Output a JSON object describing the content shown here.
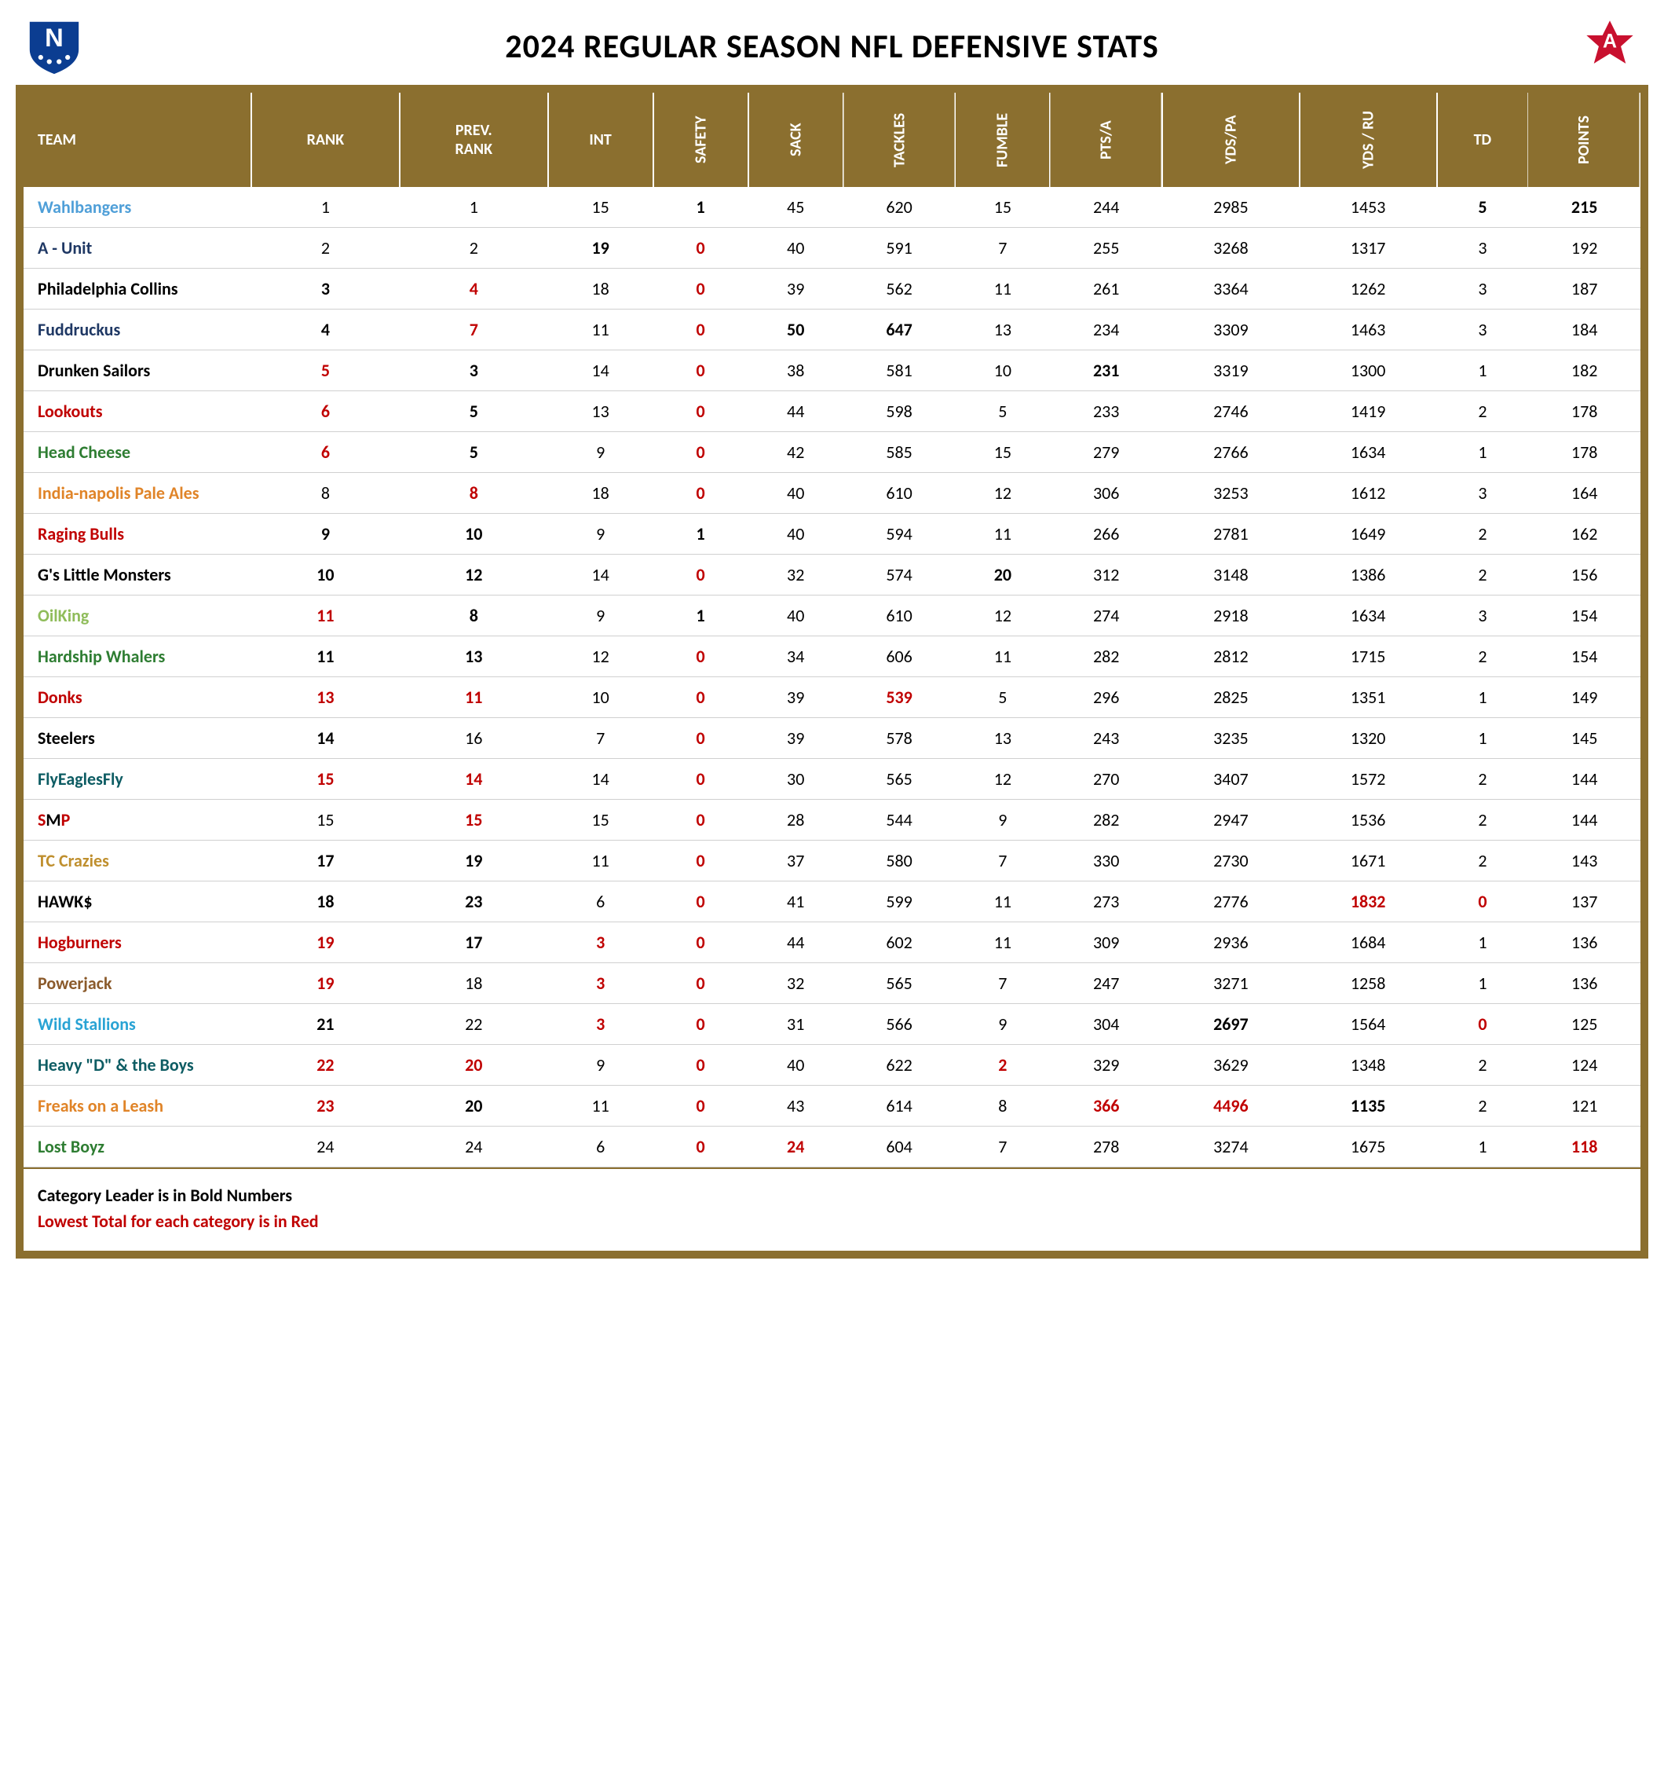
{
  "title": "2024 REGULAR SEASON NFL DEFENSIVE STATS",
  "colors": {
    "header_bg": "#8b6f2f",
    "header_fg": "#ffffff",
    "red": "#c00000",
    "nfc_logo": "#0b3d91",
    "afc_logo": "#c8102e"
  },
  "columns": [
    {
      "key": "team",
      "label": "TEAM",
      "vert": false
    },
    {
      "key": "rank",
      "label": "RANK",
      "vert": false
    },
    {
      "key": "prev",
      "label": "PREV. RANK",
      "vert": false
    },
    {
      "key": "int",
      "label": "INT",
      "vert": false
    },
    {
      "key": "safety",
      "label": "SAFETY",
      "vert": true
    },
    {
      "key": "sack",
      "label": "SACK",
      "vert": true
    },
    {
      "key": "tackles",
      "label": "TACKLES",
      "vert": true
    },
    {
      "key": "fumble",
      "label": "FUMBLE",
      "vert": true
    },
    {
      "key": "ptsa",
      "label": "PTS/A",
      "vert": true
    },
    {
      "key": "ydspa",
      "label": "YDS/PA",
      "vert": true
    },
    {
      "key": "ydsru",
      "label": "YDS / RU",
      "vert": true
    },
    {
      "key": "td",
      "label": "TD",
      "vert": false
    },
    {
      "key": "points",
      "label": "POINTS",
      "vert": true
    }
  ],
  "team_colors": {
    "Wahlbangers": "#4f9fd8",
    "A - Unit": "#1f3864",
    "Philadelphia Collins": "#000000",
    "Fuddruckus": "#1f3864",
    "Drunken Sailors": "#000000",
    "Lookouts": "#c00000",
    "Head Cheese": "#2e7d32",
    "India-napolis Pale Ales": "#e08428",
    "Raging Bulls": "#c00000",
    "G's Little Monsters": "#000000",
    "OilKing": "#8fbc5a",
    "Hardship Whalers": "#2e7d32",
    "Donks": "#c00000",
    "Steelers": "#000000",
    "FlyEaglesFly": "#0d5c63",
    "SMP": "#000000",
    "TC Crazies": "#bf8f2e",
    "HAWK$": "#000000",
    "Hogburners": "#c00000",
    "Powerjack": "#8b5a2b",
    "Wild Stallions": "#29a3d4",
    "Heavy \"D\" & the Boys": "#0d5c63",
    "Freaks on a Leash": "#e08428",
    "Lost Boyz": "#2e7d32"
  },
  "smp_span": {
    "prefix": "S",
    "prefix_color": "#c00000",
    "mid": "M",
    "mid_color": "#000000",
    "suffix": "P",
    "suffix_color": "#c00000"
  },
  "rows": [
    {
      "team": "Wahlbangers",
      "rank": {
        "v": 1
      },
      "prev": {
        "v": 1
      },
      "int": {
        "v": 15
      },
      "safety": {
        "v": 1,
        "b": true
      },
      "sack": {
        "v": 45
      },
      "tackles": {
        "v": 620
      },
      "fumble": {
        "v": 15
      },
      "ptsa": {
        "v": 244
      },
      "ydspa": {
        "v": 2985
      },
      "ydsru": {
        "v": 1453
      },
      "td": {
        "v": 5,
        "b": true
      },
      "points": {
        "v": 215,
        "b": true
      }
    },
    {
      "team": "A - Unit",
      "rank": {
        "v": 2
      },
      "prev": {
        "v": 2
      },
      "int": {
        "v": 19,
        "b": true
      },
      "safety": {
        "v": 0,
        "r": true
      },
      "sack": {
        "v": 40
      },
      "tackles": {
        "v": 591
      },
      "fumble": {
        "v": 7
      },
      "ptsa": {
        "v": 255
      },
      "ydspa": {
        "v": 3268
      },
      "ydsru": {
        "v": 1317
      },
      "td": {
        "v": 3
      },
      "points": {
        "v": 192
      }
    },
    {
      "team": "Philadelphia Collins",
      "rank": {
        "v": 3,
        "b": true
      },
      "prev": {
        "v": 4,
        "r": true
      },
      "int": {
        "v": 18
      },
      "safety": {
        "v": 0,
        "r": true
      },
      "sack": {
        "v": 39
      },
      "tackles": {
        "v": 562
      },
      "fumble": {
        "v": 11
      },
      "ptsa": {
        "v": 261
      },
      "ydspa": {
        "v": 3364
      },
      "ydsru": {
        "v": 1262
      },
      "td": {
        "v": 3
      },
      "points": {
        "v": 187
      }
    },
    {
      "team": "Fuddruckus",
      "rank": {
        "v": 4,
        "b": true
      },
      "prev": {
        "v": 7,
        "r": true
      },
      "int": {
        "v": 11
      },
      "safety": {
        "v": 0,
        "r": true
      },
      "sack": {
        "v": 50,
        "b": true
      },
      "tackles": {
        "v": 647,
        "b": true
      },
      "fumble": {
        "v": 13
      },
      "ptsa": {
        "v": 234
      },
      "ydspa": {
        "v": 3309
      },
      "ydsru": {
        "v": 1463
      },
      "td": {
        "v": 3
      },
      "points": {
        "v": 184
      }
    },
    {
      "team": "Drunken Sailors",
      "rank": {
        "v": 5,
        "r": true
      },
      "prev": {
        "v": 3,
        "b": true
      },
      "int": {
        "v": 14
      },
      "safety": {
        "v": 0,
        "r": true
      },
      "sack": {
        "v": 38
      },
      "tackles": {
        "v": 581
      },
      "fumble": {
        "v": 10
      },
      "ptsa": {
        "v": 231,
        "b": true
      },
      "ydspa": {
        "v": 3319
      },
      "ydsru": {
        "v": 1300
      },
      "td": {
        "v": 1
      },
      "points": {
        "v": 182
      }
    },
    {
      "team": "Lookouts",
      "rank": {
        "v": 6,
        "r": true
      },
      "prev": {
        "v": 5,
        "b": true
      },
      "int": {
        "v": 13
      },
      "safety": {
        "v": 0,
        "r": true
      },
      "sack": {
        "v": 44
      },
      "tackles": {
        "v": 598
      },
      "fumble": {
        "v": 5
      },
      "ptsa": {
        "v": 233
      },
      "ydspa": {
        "v": 2746
      },
      "ydsru": {
        "v": 1419
      },
      "td": {
        "v": 2
      },
      "points": {
        "v": 178
      }
    },
    {
      "team": "Head Cheese",
      "rank": {
        "v": 6,
        "r": true
      },
      "prev": {
        "v": 5,
        "b": true
      },
      "int": {
        "v": 9
      },
      "safety": {
        "v": 0,
        "r": true
      },
      "sack": {
        "v": 42
      },
      "tackles": {
        "v": 585
      },
      "fumble": {
        "v": 15
      },
      "ptsa": {
        "v": 279
      },
      "ydspa": {
        "v": 2766
      },
      "ydsru": {
        "v": 1634
      },
      "td": {
        "v": 1
      },
      "points": {
        "v": 178
      }
    },
    {
      "team": "India-napolis Pale Ales",
      "rank": {
        "v": 8
      },
      "prev": {
        "v": 8,
        "r": true
      },
      "int": {
        "v": 18
      },
      "safety": {
        "v": 0,
        "r": true
      },
      "sack": {
        "v": 40
      },
      "tackles": {
        "v": 610
      },
      "fumble": {
        "v": 12
      },
      "ptsa": {
        "v": 306
      },
      "ydspa": {
        "v": 3253
      },
      "ydsru": {
        "v": 1612
      },
      "td": {
        "v": 3
      },
      "points": {
        "v": 164
      }
    },
    {
      "team": "Raging Bulls",
      "rank": {
        "v": 9,
        "b": true
      },
      "prev": {
        "v": 10,
        "b": true
      },
      "int": {
        "v": 9
      },
      "safety": {
        "v": 1,
        "b": true
      },
      "sack": {
        "v": 40
      },
      "tackles": {
        "v": 594
      },
      "fumble": {
        "v": 11
      },
      "ptsa": {
        "v": 266
      },
      "ydspa": {
        "v": 2781
      },
      "ydsru": {
        "v": 1649
      },
      "td": {
        "v": 2
      },
      "points": {
        "v": 162
      }
    },
    {
      "team": "G's Little Monsters",
      "rank": {
        "v": 10,
        "b": true
      },
      "prev": {
        "v": 12,
        "b": true
      },
      "int": {
        "v": 14
      },
      "safety": {
        "v": 0,
        "r": true
      },
      "sack": {
        "v": 32
      },
      "tackles": {
        "v": 574
      },
      "fumble": {
        "v": 20,
        "b": true
      },
      "ptsa": {
        "v": 312
      },
      "ydspa": {
        "v": 3148
      },
      "ydsru": {
        "v": 1386
      },
      "td": {
        "v": 2
      },
      "points": {
        "v": 156
      }
    },
    {
      "team": "OilKing",
      "rank": {
        "v": 11,
        "r": true
      },
      "prev": {
        "v": 8,
        "b": true
      },
      "int": {
        "v": 9
      },
      "safety": {
        "v": 1,
        "b": true
      },
      "sack": {
        "v": 40
      },
      "tackles": {
        "v": 610
      },
      "fumble": {
        "v": 12
      },
      "ptsa": {
        "v": 274
      },
      "ydspa": {
        "v": 2918
      },
      "ydsru": {
        "v": 1634
      },
      "td": {
        "v": 3
      },
      "points": {
        "v": 154
      }
    },
    {
      "team": "Hardship Whalers",
      "rank": {
        "v": 11,
        "b": true
      },
      "prev": {
        "v": 13,
        "b": true
      },
      "int": {
        "v": 12
      },
      "safety": {
        "v": 0,
        "r": true
      },
      "sack": {
        "v": 34
      },
      "tackles": {
        "v": 606
      },
      "fumble": {
        "v": 11
      },
      "ptsa": {
        "v": 282
      },
      "ydspa": {
        "v": 2812
      },
      "ydsru": {
        "v": 1715
      },
      "td": {
        "v": 2
      },
      "points": {
        "v": 154
      }
    },
    {
      "team": "Donks",
      "rank": {
        "v": 13,
        "r": true
      },
      "prev": {
        "v": 11,
        "r": true
      },
      "int": {
        "v": 10
      },
      "safety": {
        "v": 0,
        "r": true
      },
      "sack": {
        "v": 39
      },
      "tackles": {
        "v": 539,
        "r": true
      },
      "fumble": {
        "v": 5
      },
      "ptsa": {
        "v": 296
      },
      "ydspa": {
        "v": 2825
      },
      "ydsru": {
        "v": 1351
      },
      "td": {
        "v": 1
      },
      "points": {
        "v": 149
      }
    },
    {
      "team": "Steelers",
      "rank": {
        "v": 14,
        "b": true
      },
      "prev": {
        "v": 16
      },
      "int": {
        "v": 7
      },
      "safety": {
        "v": 0,
        "r": true
      },
      "sack": {
        "v": 39
      },
      "tackles": {
        "v": 578
      },
      "fumble": {
        "v": 13
      },
      "ptsa": {
        "v": 243
      },
      "ydspa": {
        "v": 3235
      },
      "ydsru": {
        "v": 1320
      },
      "td": {
        "v": 1
      },
      "points": {
        "v": 145
      }
    },
    {
      "team": "FlyEaglesFly",
      "rank": {
        "v": 15,
        "r": true
      },
      "prev": {
        "v": 14,
        "r": true
      },
      "int": {
        "v": 14
      },
      "safety": {
        "v": 0,
        "r": true
      },
      "sack": {
        "v": 30
      },
      "tackles": {
        "v": 565
      },
      "fumble": {
        "v": 12
      },
      "ptsa": {
        "v": 270
      },
      "ydspa": {
        "v": 3407
      },
      "ydsru": {
        "v": 1572
      },
      "td": {
        "v": 2
      },
      "points": {
        "v": 144
      }
    },
    {
      "team": "SMP",
      "rank": {
        "v": 15
      },
      "prev": {
        "v": 15,
        "r": true
      },
      "int": {
        "v": 15
      },
      "safety": {
        "v": 0,
        "r": true
      },
      "sack": {
        "v": 28
      },
      "tackles": {
        "v": 544
      },
      "fumble": {
        "v": 9
      },
      "ptsa": {
        "v": 282
      },
      "ydspa": {
        "v": 2947
      },
      "ydsru": {
        "v": 1536
      },
      "td": {
        "v": 2
      },
      "points": {
        "v": 144
      }
    },
    {
      "team": "TC Crazies",
      "rank": {
        "v": 17,
        "b": true
      },
      "prev": {
        "v": 19,
        "b": true
      },
      "int": {
        "v": 11
      },
      "safety": {
        "v": 0,
        "r": true
      },
      "sack": {
        "v": 37
      },
      "tackles": {
        "v": 580
      },
      "fumble": {
        "v": 7
      },
      "ptsa": {
        "v": 330
      },
      "ydspa": {
        "v": 2730
      },
      "ydsru": {
        "v": 1671
      },
      "td": {
        "v": 2
      },
      "points": {
        "v": 143
      }
    },
    {
      "team": "HAWK$",
      "rank": {
        "v": 18,
        "b": true
      },
      "prev": {
        "v": 23,
        "b": true
      },
      "int": {
        "v": 6
      },
      "safety": {
        "v": 0,
        "r": true
      },
      "sack": {
        "v": 41
      },
      "tackles": {
        "v": 599
      },
      "fumble": {
        "v": 11
      },
      "ptsa": {
        "v": 273
      },
      "ydspa": {
        "v": 2776
      },
      "ydsru": {
        "v": 1832,
        "r": true
      },
      "td": {
        "v": 0,
        "r": true
      },
      "points": {
        "v": 137
      }
    },
    {
      "team": "Hogburners",
      "rank": {
        "v": 19,
        "r": true
      },
      "prev": {
        "v": 17,
        "b": true
      },
      "int": {
        "v": 3,
        "r": true
      },
      "safety": {
        "v": 0,
        "r": true
      },
      "sack": {
        "v": 44
      },
      "tackles": {
        "v": 602
      },
      "fumble": {
        "v": 11
      },
      "ptsa": {
        "v": 309
      },
      "ydspa": {
        "v": 2936
      },
      "ydsru": {
        "v": 1684
      },
      "td": {
        "v": 1
      },
      "points": {
        "v": 136
      }
    },
    {
      "team": "Powerjack",
      "rank": {
        "v": 19,
        "r": true
      },
      "prev": {
        "v": 18
      },
      "int": {
        "v": 3,
        "r": true
      },
      "safety": {
        "v": 0,
        "r": true
      },
      "sack": {
        "v": 32
      },
      "tackles": {
        "v": 565
      },
      "fumble": {
        "v": 7
      },
      "ptsa": {
        "v": 247
      },
      "ydspa": {
        "v": 3271
      },
      "ydsru": {
        "v": 1258
      },
      "td": {
        "v": 1
      },
      "points": {
        "v": 136
      }
    },
    {
      "team": "Wild Stallions",
      "rank": {
        "v": 21,
        "b": true
      },
      "prev": {
        "v": 22
      },
      "int": {
        "v": 3,
        "r": true
      },
      "safety": {
        "v": 0,
        "r": true
      },
      "sack": {
        "v": 31
      },
      "tackles": {
        "v": 566
      },
      "fumble": {
        "v": 9
      },
      "ptsa": {
        "v": 304
      },
      "ydspa": {
        "v": 2697,
        "b": true
      },
      "ydsru": {
        "v": 1564
      },
      "td": {
        "v": 0,
        "r": true
      },
      "points": {
        "v": 125
      }
    },
    {
      "team": "Heavy \"D\" & the Boys",
      "rank": {
        "v": 22,
        "r": true
      },
      "prev": {
        "v": 20,
        "r": true
      },
      "int": {
        "v": 9
      },
      "safety": {
        "v": 0,
        "r": true
      },
      "sack": {
        "v": 40
      },
      "tackles": {
        "v": 622
      },
      "fumble": {
        "v": 2,
        "r": true
      },
      "ptsa": {
        "v": 329
      },
      "ydspa": {
        "v": 3629
      },
      "ydsru": {
        "v": 1348
      },
      "td": {
        "v": 2
      },
      "points": {
        "v": 124
      }
    },
    {
      "team": "Freaks on a Leash",
      "rank": {
        "v": 23,
        "r": true
      },
      "prev": {
        "v": 20,
        "b": true
      },
      "int": {
        "v": 11
      },
      "safety": {
        "v": 0,
        "r": true
      },
      "sack": {
        "v": 43
      },
      "tackles": {
        "v": 614
      },
      "fumble": {
        "v": 8
      },
      "ptsa": {
        "v": 366,
        "r": true
      },
      "ydspa": {
        "v": 4496,
        "r": true
      },
      "ydsru": {
        "v": 1135,
        "b": true
      },
      "td": {
        "v": 2
      },
      "points": {
        "v": 121
      }
    },
    {
      "team": "Lost Boyz",
      "rank": {
        "v": 24
      },
      "prev": {
        "v": 24
      },
      "int": {
        "v": 6
      },
      "safety": {
        "v": 0,
        "r": true
      },
      "sack": {
        "v": 24,
        "r": true
      },
      "tackles": {
        "v": 604
      },
      "fumble": {
        "v": 7
      },
      "ptsa": {
        "v": 278
      },
      "ydspa": {
        "v": 3274
      },
      "ydsru": {
        "v": 1675
      },
      "td": {
        "v": 1
      },
      "points": {
        "v": 118,
        "r": true
      }
    }
  ],
  "legend": {
    "leader": "Category Leader is in Bold Numbers",
    "lowest": "Lowest Total for each category is in Red"
  }
}
